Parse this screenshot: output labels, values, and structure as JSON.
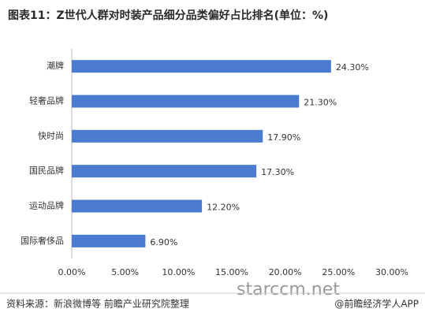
{
  "chart_data": {
    "type": "hbar",
    "title": "图表11：Z世代人群对时装产品细分品类偏好占比排名(单位：%)",
    "categories": [
      "潮牌",
      "轻奢品牌",
      "快时尚",
      "国民品牌",
      "运动品牌",
      "国际奢侈品"
    ],
    "values": [
      24.3,
      21.3,
      17.9,
      17.3,
      12.2,
      6.9
    ],
    "value_labels": [
      "24.30%",
      "21.30%",
      "17.90%",
      "17.30%",
      "12.20%",
      "6.90%"
    ],
    "color": "#4a7bd0",
    "xlim": [
      0,
      30
    ],
    "xticks": [
      {
        "value": 0,
        "label": "0.00%"
      },
      {
        "value": 5,
        "label": "5.00%"
      },
      {
        "value": 10,
        "label": "10.00%"
      },
      {
        "value": 15,
        "label": "15.00%"
      },
      {
        "value": 20,
        "label": "20.00%"
      },
      {
        "value": 25,
        "label": "25.00%"
      },
      {
        "value": 30,
        "label": "30.00%"
      }
    ],
    "grid": false,
    "watermark": "starccm.net",
    "source": "资料来源：新浪微博等  前瞻产业研究院整理",
    "credit": "@前瞻经济学人APP"
  }
}
